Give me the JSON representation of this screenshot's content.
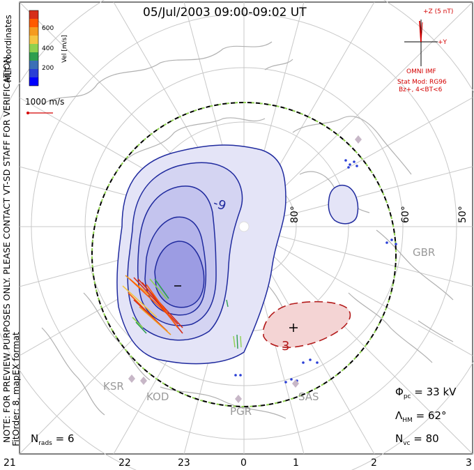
{
  "title": "05/Jul/2003 09:00-09:02 UT",
  "colorbar": {
    "label": "Vel [m/s]",
    "ticks": [
      "600",
      "400",
      "200"
    ],
    "colors": [
      "#d62e1a",
      "#ff5a00",
      "#f59b1f",
      "#f5c542",
      "#8fd14f",
      "#2e9e4f",
      "#3b6fb6",
      "#2a3fd6",
      "#0000ff"
    ]
  },
  "reference_vector": {
    "label": "1000 m/s"
  },
  "coords_label": "MLT coordinates",
  "imf": {
    "z_label": "+Z (5 nT)",
    "y_label": "+Y",
    "source": "OMNI IMF",
    "model": "Stat Mod: RG96",
    "condition": "Bz+, 4<BT<6"
  },
  "notes": {
    "line1": "NOTE: FOR PREVIEW PURPOSES ONLY. PLEASE CONTACT VT-SD STAFF FOR VERIFICATION.",
    "line2": "FitOrder: 8, mapEX format"
  },
  "latitude_labels": [
    "80°",
    "60°",
    "50°"
  ],
  "contour_labels": [
    "-9",
    "3"
  ],
  "extrema": {
    "min_symbol": "–",
    "max_symbol": "+"
  },
  "stations": [
    "GBR",
    "KSR",
    "KOD",
    "PGR",
    "SAS"
  ],
  "stats": {
    "phi_pc": {
      "symbol": "Φ",
      "sub": "pc",
      "value": "= 33 kV"
    },
    "lambda_hm": {
      "symbol": "Λ",
      "sub": "HM",
      "value": "= 62°"
    },
    "n_vc": {
      "symbol": "N",
      "sub": "vc",
      "value": "= 80"
    },
    "n_rads": {
      "symbol": "N",
      "sub": "rads",
      "value": "= 6"
    }
  },
  "mlt_axis": [
    "21",
    "22",
    "23",
    "0",
    "1",
    "2",
    "3"
  ],
  "colors": {
    "negative_cell": "#c9c9ef",
    "positive_cell": "#f4d4d4",
    "negative_contour": "#1f2a9e",
    "positive_contour": "#b31a1a",
    "grid": "#c8c8c8",
    "coast": "#b0b0b0",
    "annotation_red": "#d40000"
  }
}
